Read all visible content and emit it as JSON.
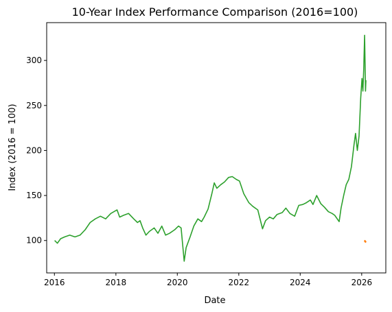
{
  "chart_data": {
    "type": "line",
    "title": "10-Year Index Performance Comparison (2016=100)",
    "xlabel": "Date",
    "ylabel": "Index (2016 = 100)",
    "xlim": [
      "2015-10-01",
      "2026-10-15"
    ],
    "ylim": [
      64,
      342
    ],
    "xticks": [
      {
        "date": "2016-01-01",
        "label": "2016"
      },
      {
        "date": "2018-01-01",
        "label": "2018"
      },
      {
        "date": "2020-01-01",
        "label": "2020"
      },
      {
        "date": "2022-01-01",
        "label": "2022"
      },
      {
        "date": "2024-01-01",
        "label": "2024"
      },
      {
        "date": "2026-01-01",
        "label": "2026"
      }
    ],
    "yticks": [
      100,
      150,
      200,
      250,
      300
    ],
    "grid": false,
    "series": [
      {
        "color": "#2ca02c",
        "points": [
          [
            "2016-01-04",
            100
          ],
          [
            "2016-02-05",
            97
          ],
          [
            "2016-03-15",
            102
          ],
          [
            "2016-05-01",
            104
          ],
          [
            "2016-07-01",
            106
          ],
          [
            "2016-09-01",
            104
          ],
          [
            "2016-11-01",
            106
          ],
          [
            "2017-01-01",
            112
          ],
          [
            "2017-03-01",
            120
          ],
          [
            "2017-05-01",
            124
          ],
          [
            "2017-07-01",
            127
          ],
          [
            "2017-09-01",
            124
          ],
          [
            "2017-11-01",
            130
          ],
          [
            "2018-01-15",
            134
          ],
          [
            "2018-02-15",
            126
          ],
          [
            "2018-04-01",
            128
          ],
          [
            "2018-06-01",
            130
          ],
          [
            "2018-08-01",
            124
          ],
          [
            "2018-09-15",
            120
          ],
          [
            "2018-10-15",
            122
          ],
          [
            "2018-11-15",
            114
          ],
          [
            "2018-12-24",
            106
          ],
          [
            "2019-02-01",
            110
          ],
          [
            "2019-04-01",
            114
          ],
          [
            "2019-05-15",
            108
          ],
          [
            "2019-07-01",
            116
          ],
          [
            "2019-08-15",
            106
          ],
          [
            "2019-10-01",
            108
          ],
          [
            "2019-12-01",
            112
          ],
          [
            "2020-01-15",
            116
          ],
          [
            "2020-02-15",
            114
          ],
          [
            "2020-03-23",
            77
          ],
          [
            "2020-04-15",
            92
          ],
          [
            "2020-06-01",
            104
          ],
          [
            "2020-07-15",
            116
          ],
          [
            "2020-09-01",
            124
          ],
          [
            "2020-10-15",
            121
          ],
          [
            "2020-11-15",
            126
          ],
          [
            "2021-01-01",
            135
          ],
          [
            "2021-02-15",
            152
          ],
          [
            "2021-03-15",
            164
          ],
          [
            "2021-04-15",
            158
          ],
          [
            "2021-06-01",
            162
          ],
          [
            "2021-07-15",
            165
          ],
          [
            "2021-09-01",
            170
          ],
          [
            "2021-10-15",
            171
          ],
          [
            "2021-12-01",
            168
          ],
          [
            "2022-01-10",
            166
          ],
          [
            "2022-03-01",
            152
          ],
          [
            "2022-05-01",
            142
          ],
          [
            "2022-06-15",
            138
          ],
          [
            "2022-08-15",
            134
          ],
          [
            "2022-10-10",
            113
          ],
          [
            "2022-11-15",
            122
          ],
          [
            "2023-01-01",
            126
          ],
          [
            "2023-02-15",
            124
          ],
          [
            "2023-04-01",
            129
          ],
          [
            "2023-06-01",
            131
          ],
          [
            "2023-07-15",
            136
          ],
          [
            "2023-09-01",
            130
          ],
          [
            "2023-10-27",
            127
          ],
          [
            "2023-12-15",
            139
          ],
          [
            "2024-02-01",
            140
          ],
          [
            "2024-03-15",
            142
          ],
          [
            "2024-05-01",
            145
          ],
          [
            "2024-06-01",
            140
          ],
          [
            "2024-07-15",
            150
          ],
          [
            "2024-09-01",
            141
          ],
          [
            "2024-10-15",
            137
          ],
          [
            "2024-12-01",
            132
          ],
          [
            "2025-01-15",
            130
          ],
          [
            "2025-02-15",
            128
          ],
          [
            "2025-04-08",
            121
          ],
          [
            "2025-05-01",
            136
          ],
          [
            "2025-06-01",
            150
          ],
          [
            "2025-07-01",
            162
          ],
          [
            "2025-08-01",
            168
          ],
          [
            "2025-09-01",
            182
          ],
          [
            "2025-10-01",
            206
          ],
          [
            "2025-10-20",
            219
          ],
          [
            "2025-11-10",
            200
          ],
          [
            "2025-12-01",
            216
          ],
          [
            "2025-12-20",
            258
          ],
          [
            "2026-01-05",
            280
          ],
          [
            "2026-01-15",
            266
          ],
          [
            "2026-01-25",
            290
          ],
          [
            "2026-02-05",
            328
          ],
          [
            "2026-02-10",
            300
          ],
          [
            "2026-02-15",
            266
          ],
          [
            "2026-02-20",
            278
          ]
        ]
      },
      {
        "color": "#ff7f0e",
        "points": [
          [
            "2026-02-02",
            100
          ],
          [
            "2026-02-06",
            99
          ],
          [
            "2026-02-10",
            100
          ],
          [
            "2026-02-14",
            98
          ],
          [
            "2026-02-18",
            99
          ],
          [
            "2026-02-22",
            98
          ]
        ]
      }
    ]
  }
}
